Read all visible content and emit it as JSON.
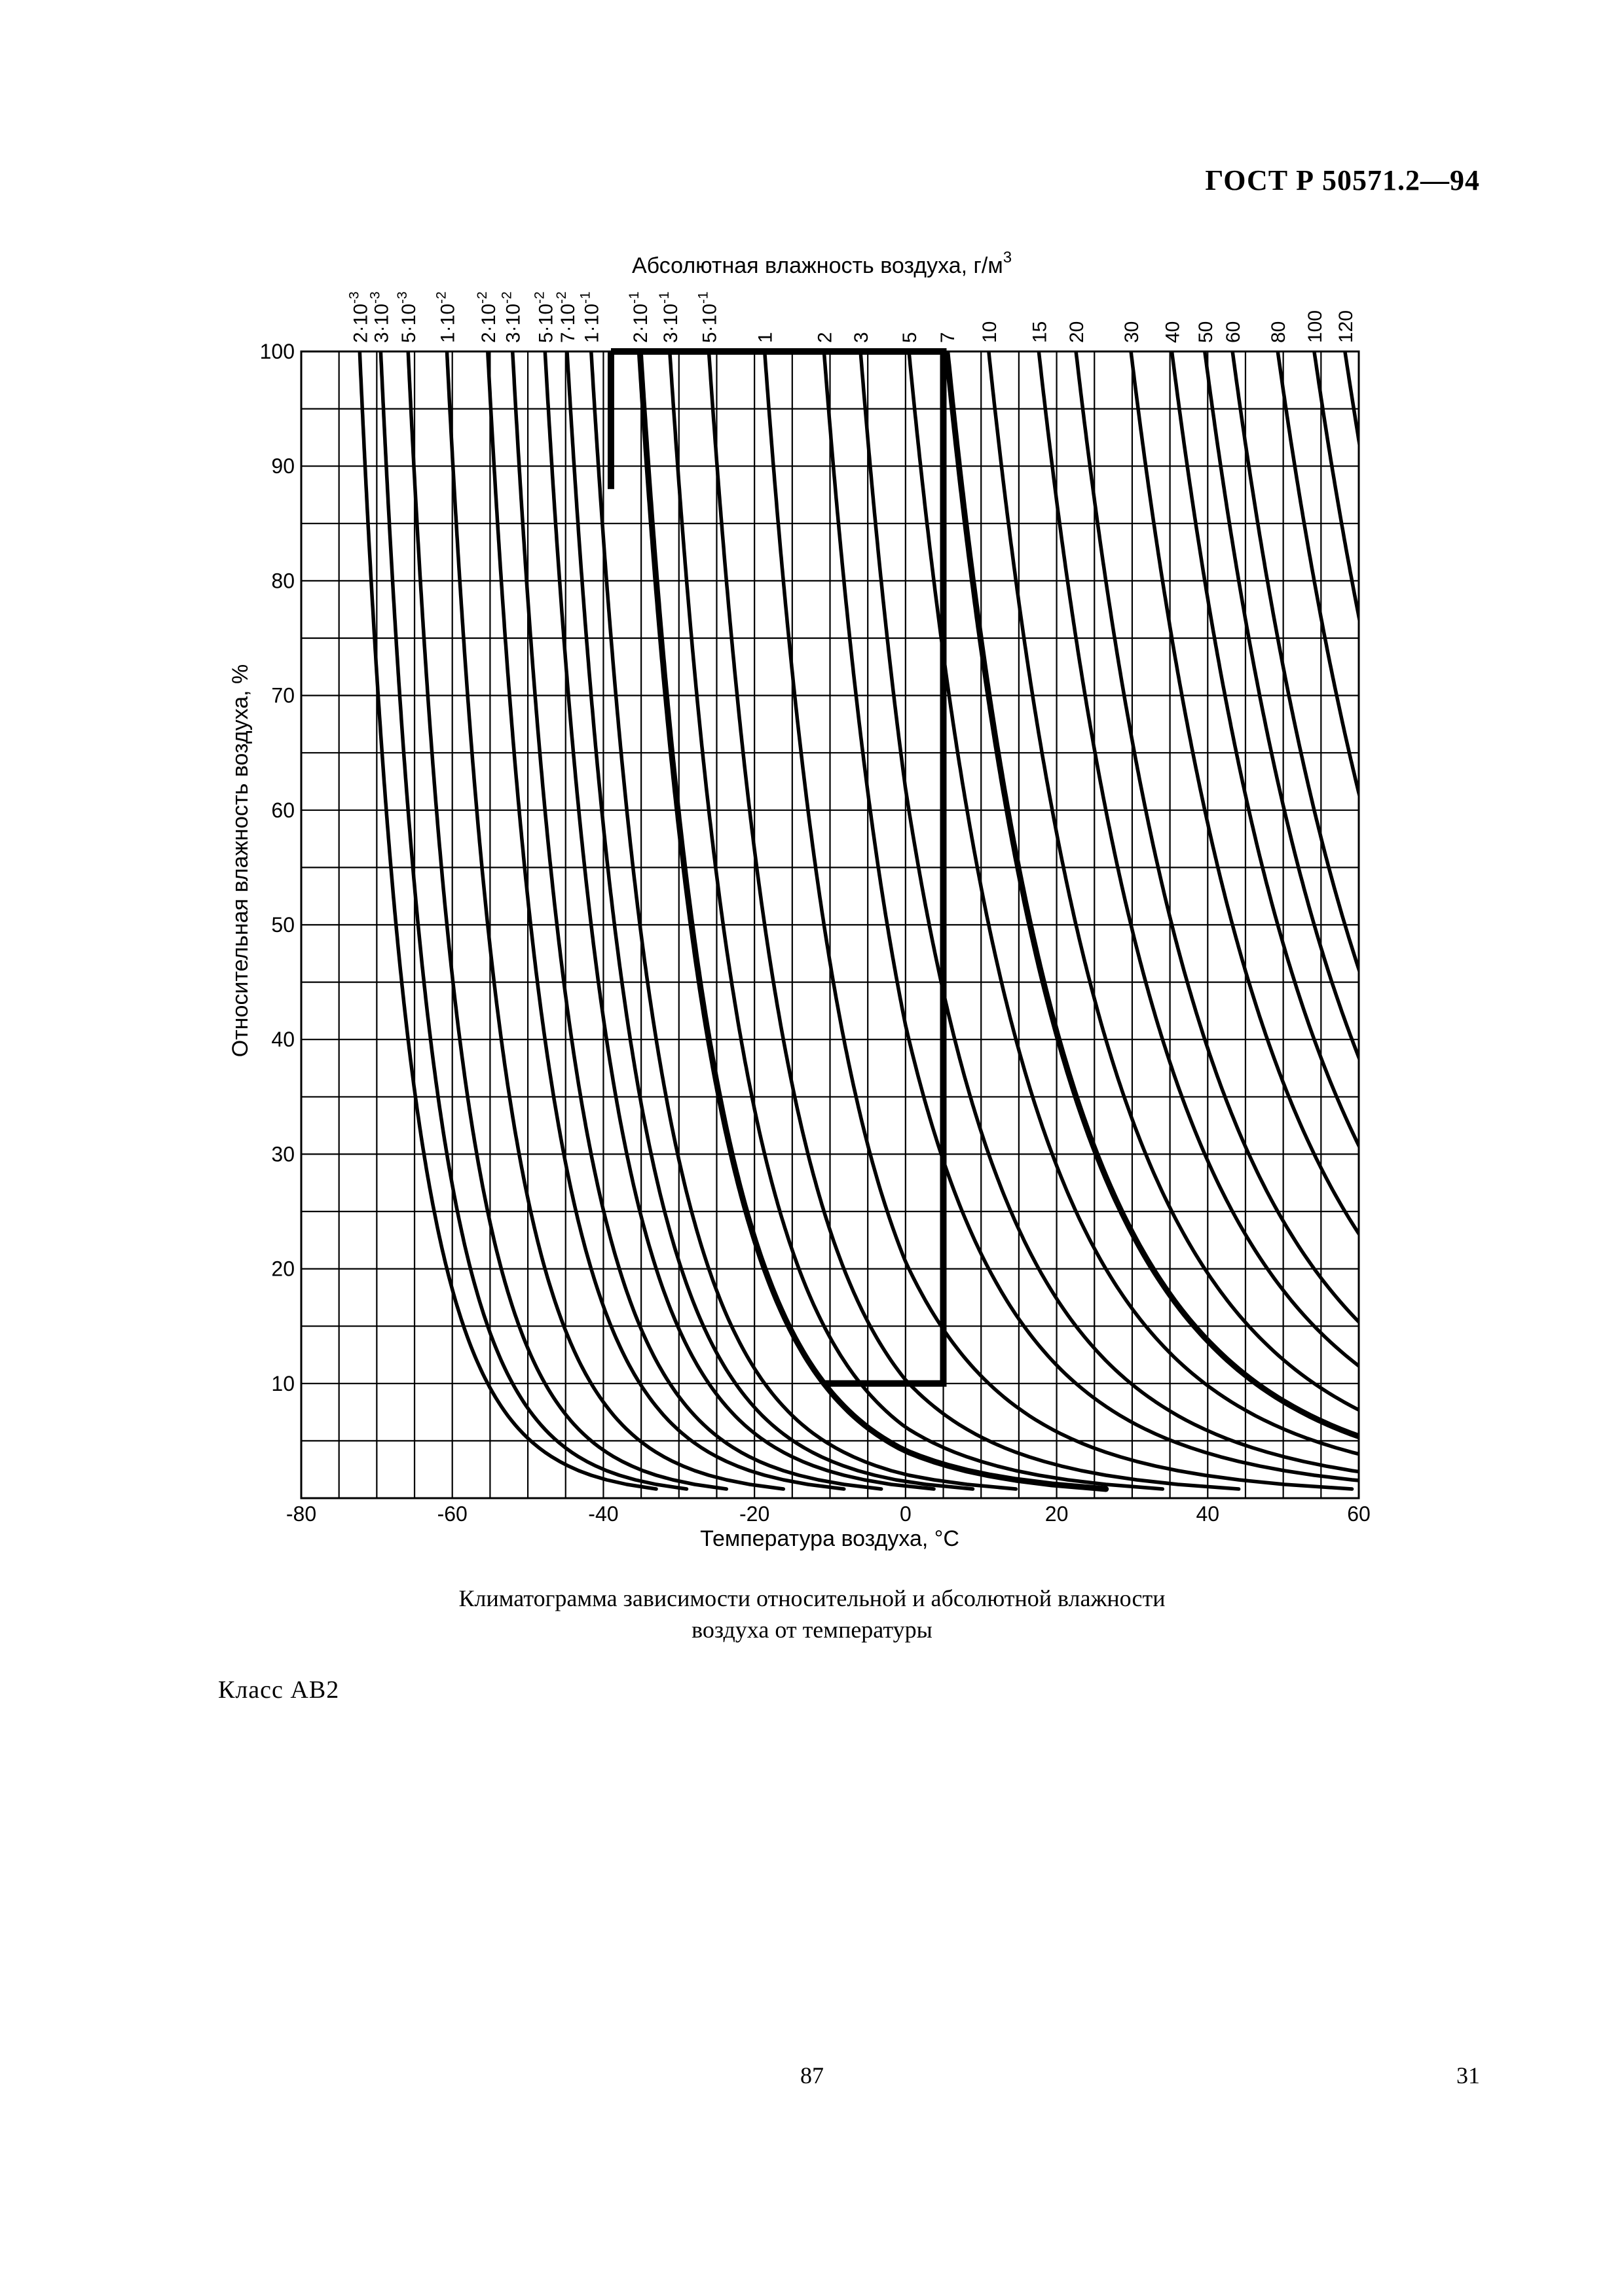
{
  "header": {
    "doc_id": "ГОСТ Р 50571.2—94"
  },
  "caption": {
    "line1": "Климатограмма зависимости относительной и абсолютной влажности",
    "line2": "воздуха от температуры"
  },
  "class_label": "Класс АВ2",
  "page_numbers": {
    "center": "87",
    "right": "31"
  },
  "chart_data": {
    "type": "line",
    "title": "",
    "xlabel": "Температура воздуха, °С",
    "ylabel": "Относительная влажность воздуха, %",
    "top_axis_label": "Абсолютная влажность воздуха, г/м",
    "top_axis_label_superscript": "3",
    "xlim": [
      -80,
      60
    ],
    "ylim": [
      0,
      100
    ],
    "x_ticks": [
      "-80",
      "-60",
      "-40",
      "-20",
      "0",
      "20",
      "40",
      "60"
    ],
    "y_ticks": [
      "10",
      "20",
      "30",
      "40",
      "50",
      "60",
      "70",
      "80",
      "90",
      "100"
    ],
    "grid": {
      "x_step": 5,
      "y_step": 5
    },
    "absolute_humidity_curves": [
      {
        "mantissa": "2",
        "exponent": "-3",
        "value": 0.002
      },
      {
        "mantissa": "3",
        "exponent": "-3",
        "value": 0.003
      },
      {
        "mantissa": "5",
        "exponent": "-3",
        "value": 0.005
      },
      {
        "mantissa": "1",
        "exponent": "-2",
        "value": 0.01
      },
      {
        "mantissa": "2",
        "exponent": "-2",
        "value": 0.02
      },
      {
        "mantissa": "3",
        "exponent": "-2",
        "value": 0.03
      },
      {
        "mantissa": "5",
        "exponent": "-2",
        "value": 0.05
      },
      {
        "mantissa": "7",
        "exponent": "-2",
        "value": 0.07
      },
      {
        "mantissa": "1",
        "exponent": "-1",
        "value": 0.1
      },
      {
        "mantissa": "2",
        "exponent": "-1",
        "value": 0.2,
        "bold": true
      },
      {
        "mantissa": "3",
        "exponent": "-1",
        "value": 0.3
      },
      {
        "mantissa": "5",
        "exponent": "-1",
        "value": 0.5
      },
      {
        "label": "1",
        "value": 1
      },
      {
        "label": "2",
        "value": 2
      },
      {
        "label": "3",
        "value": 3
      },
      {
        "label": "5",
        "value": 5
      },
      {
        "label": "7",
        "value": 7,
        "bold": true
      },
      {
        "label": "10",
        "value": 10
      },
      {
        "label": "15",
        "value": 15
      },
      {
        "label": "20",
        "value": 20
      },
      {
        "label": "30",
        "value": 30
      },
      {
        "label": "40",
        "value": 40
      },
      {
        "label": "50",
        "value": 50
      },
      {
        "label": "60",
        "value": 60
      },
      {
        "label": "80",
        "value": 80
      },
      {
        "label": "100",
        "value": 100
      },
      {
        "label": "120",
        "value": 120
      }
    ],
    "class_region_AB2": {
      "description": "bold outline",
      "t_min": -39,
      "t_max": 5,
      "rh_min": 10,
      "rh_max": 100,
      "boundary_absolute_humidity_low": 0.2,
      "boundary_absolute_humidity_high": 7
    }
  }
}
